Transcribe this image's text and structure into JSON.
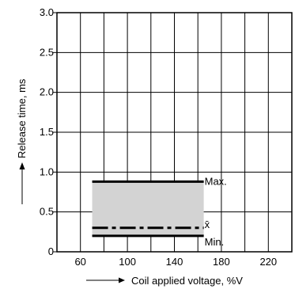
{
  "chart_data": {
    "type": "line",
    "xlabel": "Coil applied voltage, %V",
    "ylabel": "Release time, ms",
    "xlim": [
      40,
      240
    ],
    "ylim": [
      0,
      3.0
    ],
    "x_ticks": [
      60,
      100,
      140,
      180,
      220
    ],
    "x_tick_labels": [
      "60",
      "100",
      "140",
      "180",
      "220"
    ],
    "y_ticks": [
      0,
      0.5,
      1.0,
      1.5,
      2.0,
      2.5,
      3.0
    ],
    "y_tick_labels": [
      "0",
      "0.5",
      "1.0",
      "1.5",
      "2.0",
      "2.5",
      "3.0"
    ],
    "grid": true,
    "grid_x": [
      40,
      60,
      80,
      100,
      120,
      140,
      160,
      180,
      200,
      220,
      240
    ],
    "grid_y": [
      0,
      0.5,
      1.0,
      1.5,
      2.0,
      2.5,
      3.0
    ],
    "band": {
      "x": [
        70,
        165
      ],
      "y": [
        0.2,
        0.88
      ],
      "color": "#d3d3d3"
    },
    "series": [
      {
        "name": "Max.",
        "x": [
          70,
          165
        ],
        "y": [
          0.88,
          0.88
        ],
        "style": "solid"
      },
      {
        "name": "x̄",
        "x": [
          70,
          165
        ],
        "y": [
          0.3,
          0.3
        ],
        "style": "dashdot"
      },
      {
        "name": "Min.",
        "x": [
          70,
          165
        ],
        "y": [
          0.2,
          0.2
        ],
        "style": "solid"
      }
    ]
  }
}
